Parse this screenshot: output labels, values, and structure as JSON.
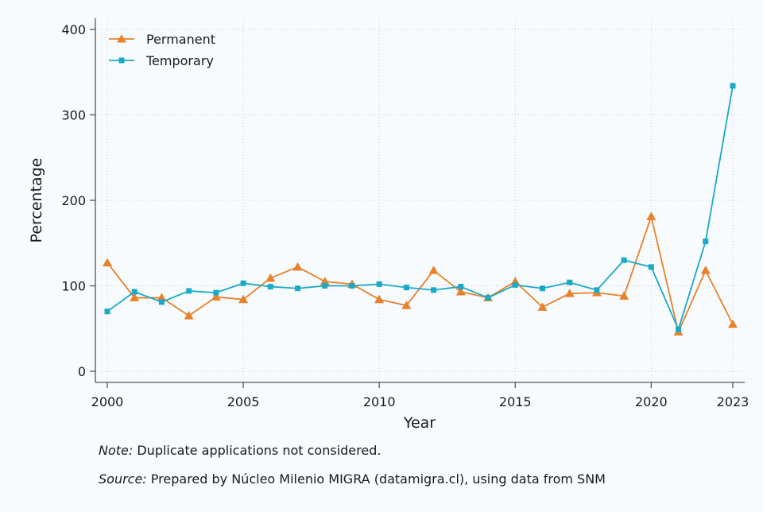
{
  "chart_data": {
    "type": "line",
    "xlabel": "Year",
    "ylabel": "Percentage",
    "xlim": [
      2000,
      2023
    ],
    "ylim": [
      0,
      400
    ],
    "x_ticks": [
      2000,
      2005,
      2010,
      2015,
      2020,
      2023
    ],
    "y_ticks": [
      0,
      100,
      200,
      300,
      400
    ],
    "grid": true,
    "legend_position": "top-left",
    "x": [
      2000,
      2001,
      2002,
      2003,
      2004,
      2005,
      2006,
      2007,
      2008,
      2009,
      2010,
      2011,
      2012,
      2013,
      2014,
      2015,
      2016,
      2017,
      2018,
      2019,
      2020,
      2021,
      2022,
      2023
    ],
    "series": [
      {
        "name": "Permanent",
        "color": "#e8812a",
        "marker": "triangle",
        "values": [
          127,
          86,
          86,
          65,
          87,
          84,
          109,
          122,
          105,
          102,
          84,
          77,
          118,
          93,
          86,
          105,
          75,
          91,
          92,
          88,
          181,
          46,
          118,
          55
        ]
      },
      {
        "name": "Temporary",
        "color": "#1aa9c6",
        "marker": "square",
        "values": [
          70,
          93,
          81,
          94,
          92,
          103,
          99,
          97,
          100,
          100,
          102,
          98,
          95,
          99,
          86,
          101,
          97,
          104,
          95,
          130,
          122,
          49,
          152,
          334
        ]
      }
    ]
  },
  "notes": {
    "note_label": "Note:",
    "note_text": " Duplicate applications not considered.",
    "source_label": "Source:",
    "source_text": " Prepared by Núcleo Milenio MIGRA (datamigra.cl), using data from SNM"
  }
}
